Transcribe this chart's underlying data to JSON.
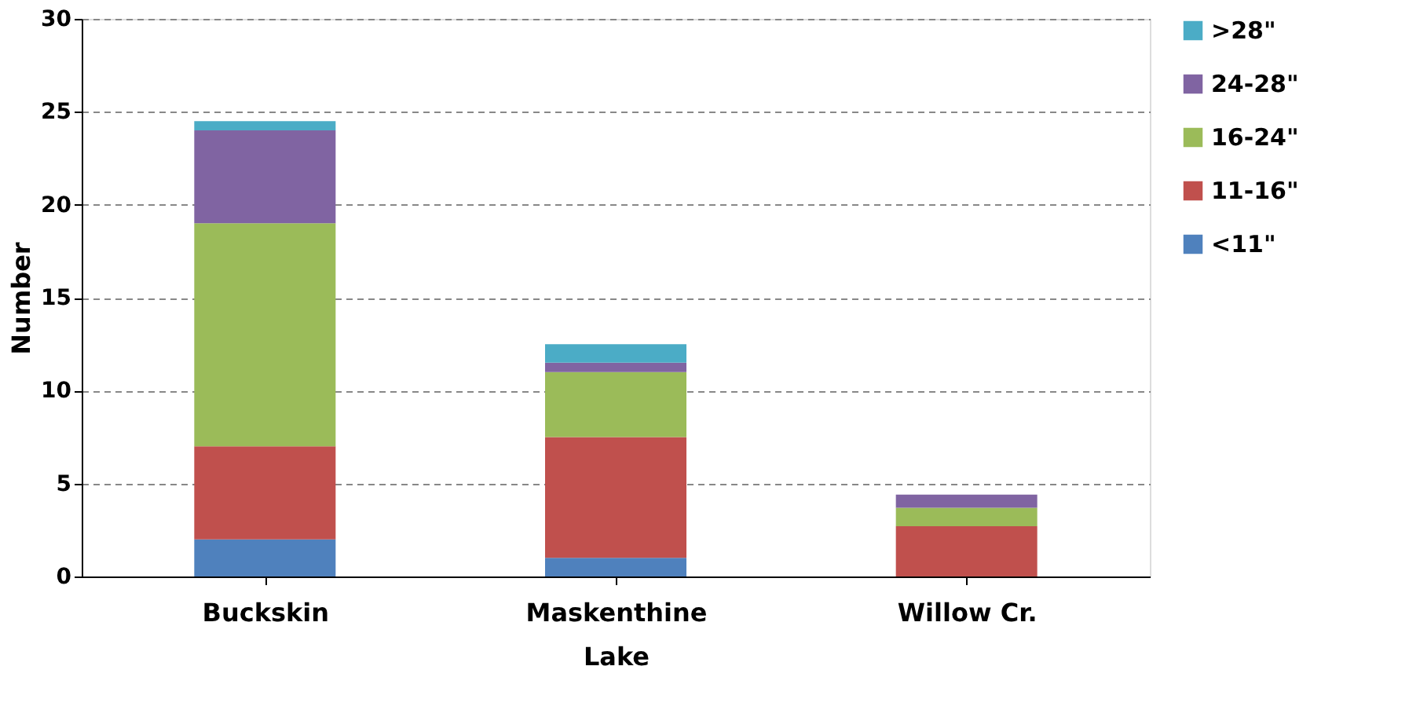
{
  "chart_data": {
    "type": "bar",
    "stacked": true,
    "xlabel": "Lake",
    "ylabel": "Number",
    "categories": [
      "Buckskin",
      "Maskenthine",
      "Willow Cr."
    ],
    "series": [
      {
        "name": "<11\"",
        "color": "#4f81bd",
        "values": [
          2,
          1,
          0
        ]
      },
      {
        "name": "11-16\"",
        "color": "#c0504d",
        "values": [
          5,
          6.5,
          2.7
        ]
      },
      {
        "name": "16-24\"",
        "color": "#9bbb59",
        "values": [
          12,
          3.5,
          1
        ]
      },
      {
        "name": "24-28\"",
        "color": "#8064a2",
        "values": [
          5,
          0.5,
          0.7
        ]
      },
      {
        "name": ">28\"",
        "color": "#4bacc6",
        "values": [
          0.5,
          1,
          0
        ]
      }
    ],
    "ylim": [
      0,
      30
    ],
    "yticks": [
      0,
      5,
      10,
      15,
      20,
      25,
      30
    ],
    "grid": "y",
    "legend": "right"
  }
}
